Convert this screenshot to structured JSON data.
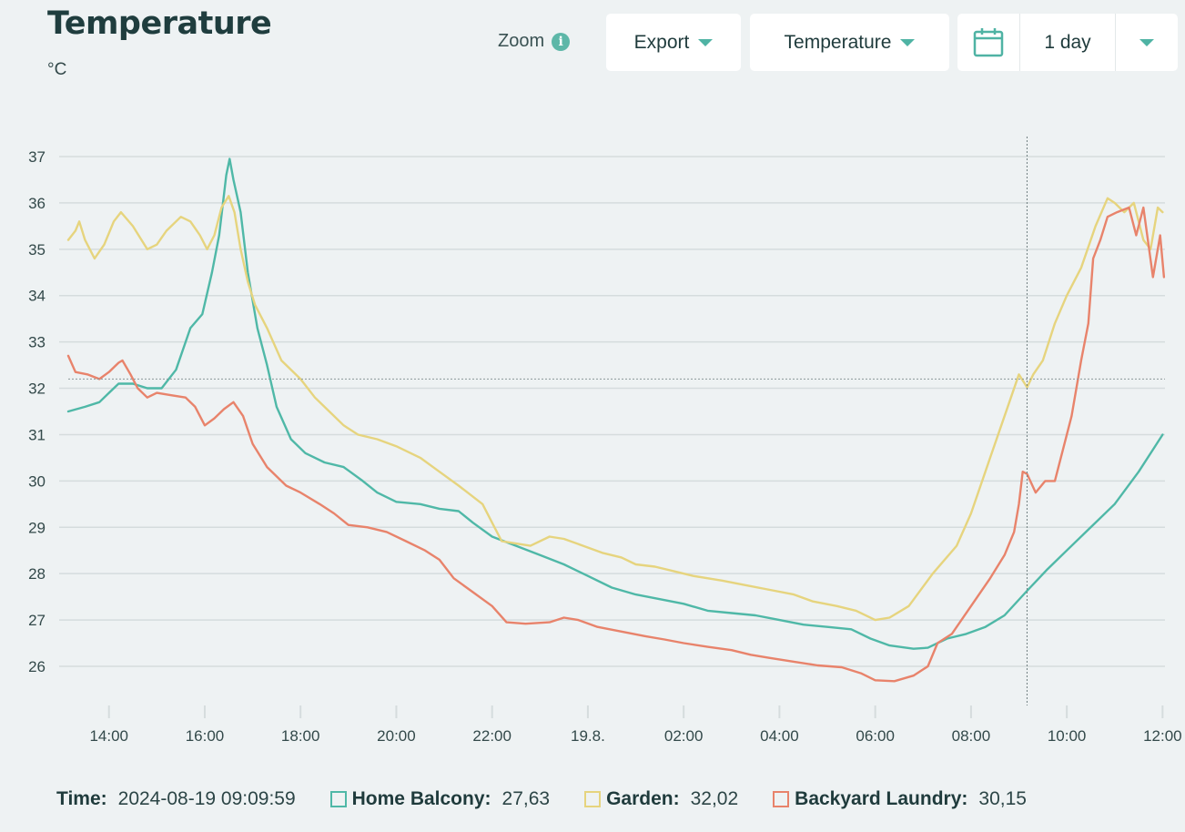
{
  "header": {
    "title": "Temperature",
    "unit": "°C",
    "zoom_label": "Zoom",
    "export_label": "Export",
    "metric_label": "Temperature",
    "range_label": "1 day"
  },
  "colors": {
    "accent": "#4fb3a4",
    "home_balcony": "#4fb8a7",
    "garden": "#e6d47e",
    "backyard_laundry": "#e8836b",
    "grid": "#d5dcdd"
  },
  "footer": {
    "time_label": "Time:",
    "time_value": "2024-08-19 09:09:59",
    "legend": [
      {
        "name": "Home Balcony:",
        "value": "27,63"
      },
      {
        "name": "Garden:",
        "value": "32,02"
      },
      {
        "name": "Backyard Laundry:",
        "value": "30,15"
      }
    ]
  },
  "chart_data": {
    "type": "line",
    "x_unit": "hours since 2024-08-18 00:00",
    "xlim": [
      13.15,
      36.05
    ],
    "ylim": [
      25.2,
      37.4
    ],
    "yticks": [
      26,
      27,
      28,
      29,
      30,
      31,
      32,
      33,
      34,
      35,
      36,
      37
    ],
    "xticks": [
      {
        "x": 14,
        "label": "14:00"
      },
      {
        "x": 16,
        "label": "16:00"
      },
      {
        "x": 18,
        "label": "18:00"
      },
      {
        "x": 20,
        "label": "20:00"
      },
      {
        "x": 22,
        "label": "22:00"
      },
      {
        "x": 24,
        "label": "19.8."
      },
      {
        "x": 26,
        "label": "02:00"
      },
      {
        "x": 28,
        "label": "04:00"
      },
      {
        "x": 30,
        "label": "06:00"
      },
      {
        "x": 32,
        "label": "08:00"
      },
      {
        "x": 34,
        "label": "10:00"
      },
      {
        "x": 36,
        "label": "12:00"
      }
    ],
    "crosshair": {
      "x": 33.17,
      "y": 32.2
    },
    "series": [
      {
        "name": "Home Balcony",
        "color": "#4fb8a7",
        "points": [
          [
            13.15,
            31.5
          ],
          [
            13.5,
            31.6
          ],
          [
            13.8,
            31.7
          ],
          [
            14.0,
            31.9
          ],
          [
            14.2,
            32.1
          ],
          [
            14.5,
            32.1
          ],
          [
            14.8,
            32.0
          ],
          [
            15.1,
            32.0
          ],
          [
            15.4,
            32.4
          ],
          [
            15.7,
            33.3
          ],
          [
            15.95,
            33.6
          ],
          [
            16.15,
            34.5
          ],
          [
            16.3,
            35.3
          ],
          [
            16.45,
            36.6
          ],
          [
            16.52,
            36.95
          ],
          [
            16.6,
            36.5
          ],
          [
            16.75,
            35.8
          ],
          [
            16.9,
            34.5
          ],
          [
            17.1,
            33.3
          ],
          [
            17.3,
            32.5
          ],
          [
            17.5,
            31.6
          ],
          [
            17.8,
            30.9
          ],
          [
            18.1,
            30.6
          ],
          [
            18.5,
            30.4
          ],
          [
            18.9,
            30.3
          ],
          [
            19.3,
            30.0
          ],
          [
            19.6,
            29.75
          ],
          [
            20.0,
            29.55
          ],
          [
            20.5,
            29.5
          ],
          [
            20.9,
            29.4
          ],
          [
            21.3,
            29.35
          ],
          [
            21.6,
            29.1
          ],
          [
            22.0,
            28.8
          ],
          [
            22.5,
            28.6
          ],
          [
            23.0,
            28.4
          ],
          [
            23.5,
            28.2
          ],
          [
            24.0,
            27.95
          ],
          [
            24.5,
            27.7
          ],
          [
            25.0,
            27.55
          ],
          [
            25.5,
            27.45
          ],
          [
            26.0,
            27.35
          ],
          [
            26.5,
            27.2
          ],
          [
            27.0,
            27.15
          ],
          [
            27.5,
            27.1
          ],
          [
            28.0,
            27.0
          ],
          [
            28.5,
            26.9
          ],
          [
            29.0,
            26.85
          ],
          [
            29.5,
            26.8
          ],
          [
            29.9,
            26.6
          ],
          [
            30.3,
            26.45
          ],
          [
            30.8,
            26.38
          ],
          [
            31.1,
            26.4
          ],
          [
            31.5,
            26.6
          ],
          [
            31.9,
            26.7
          ],
          [
            32.3,
            26.85
          ],
          [
            32.7,
            27.1
          ],
          [
            33.17,
            27.63
          ],
          [
            33.6,
            28.1
          ],
          [
            34.0,
            28.5
          ],
          [
            34.5,
            29.0
          ],
          [
            35.0,
            29.5
          ],
          [
            35.5,
            30.2
          ],
          [
            36.0,
            31.0
          ]
        ]
      },
      {
        "name": "Garden",
        "color": "#e6d47e",
        "points": [
          [
            13.15,
            35.2
          ],
          [
            13.3,
            35.4
          ],
          [
            13.38,
            35.6
          ],
          [
            13.5,
            35.2
          ],
          [
            13.7,
            34.8
          ],
          [
            13.9,
            35.1
          ],
          [
            14.1,
            35.6
          ],
          [
            14.25,
            35.8
          ],
          [
            14.5,
            35.5
          ],
          [
            14.8,
            35.0
          ],
          [
            15.0,
            35.1
          ],
          [
            15.2,
            35.4
          ],
          [
            15.5,
            35.7
          ],
          [
            15.7,
            35.6
          ],
          [
            15.9,
            35.3
          ],
          [
            16.05,
            35.0
          ],
          [
            16.2,
            35.3
          ],
          [
            16.35,
            35.9
          ],
          [
            16.5,
            36.15
          ],
          [
            16.62,
            35.8
          ],
          [
            16.75,
            35.0
          ],
          [
            16.9,
            34.3
          ],
          [
            17.05,
            33.8
          ],
          [
            17.3,
            33.3
          ],
          [
            17.6,
            32.6
          ],
          [
            18.0,
            32.2
          ],
          [
            18.3,
            31.8
          ],
          [
            18.6,
            31.5
          ],
          [
            18.9,
            31.2
          ],
          [
            19.2,
            31.0
          ],
          [
            19.6,
            30.9
          ],
          [
            20.0,
            30.75
          ],
          [
            20.5,
            30.5
          ],
          [
            20.9,
            30.2
          ],
          [
            21.3,
            29.9
          ],
          [
            21.8,
            29.5
          ],
          [
            22.0,
            29.1
          ],
          [
            22.2,
            28.7
          ],
          [
            22.5,
            28.65
          ],
          [
            22.8,
            28.6
          ],
          [
            23.2,
            28.8
          ],
          [
            23.5,
            28.75
          ],
          [
            23.9,
            28.6
          ],
          [
            24.3,
            28.45
          ],
          [
            24.7,
            28.35
          ],
          [
            25.0,
            28.2
          ],
          [
            25.4,
            28.15
          ],
          [
            25.8,
            28.05
          ],
          [
            26.2,
            27.95
          ],
          [
            26.8,
            27.85
          ],
          [
            27.3,
            27.75
          ],
          [
            27.8,
            27.65
          ],
          [
            28.3,
            27.55
          ],
          [
            28.7,
            27.4
          ],
          [
            29.2,
            27.3
          ],
          [
            29.6,
            27.2
          ],
          [
            30.0,
            27.0
          ],
          [
            30.3,
            27.05
          ],
          [
            30.7,
            27.3
          ],
          [
            31.2,
            28.0
          ],
          [
            31.7,
            28.6
          ],
          [
            32.0,
            29.3
          ],
          [
            32.4,
            30.5
          ],
          [
            32.8,
            31.7
          ],
          [
            33.0,
            32.3
          ],
          [
            33.17,
            32.02
          ],
          [
            33.3,
            32.3
          ],
          [
            33.5,
            32.6
          ],
          [
            33.75,
            33.4
          ],
          [
            34.0,
            34.0
          ],
          [
            34.3,
            34.6
          ],
          [
            34.6,
            35.5
          ],
          [
            34.85,
            36.1
          ],
          [
            35.0,
            36.0
          ],
          [
            35.2,
            35.8
          ],
          [
            35.4,
            36.0
          ],
          [
            35.6,
            35.2
          ],
          [
            35.75,
            35.0
          ],
          [
            35.9,
            35.9
          ],
          [
            36.0,
            35.8
          ]
        ]
      },
      {
        "name": "Backyard Laundry",
        "color": "#e8836b",
        "points": [
          [
            13.15,
            32.7
          ],
          [
            13.3,
            32.35
          ],
          [
            13.55,
            32.3
          ],
          [
            13.8,
            32.2
          ],
          [
            14.0,
            32.35
          ],
          [
            14.2,
            32.55
          ],
          [
            14.28,
            32.6
          ],
          [
            14.45,
            32.3
          ],
          [
            14.6,
            32.0
          ],
          [
            14.8,
            31.8
          ],
          [
            15.0,
            31.9
          ],
          [
            15.3,
            31.85
          ],
          [
            15.6,
            31.8
          ],
          [
            15.8,
            31.6
          ],
          [
            16.0,
            31.2
          ],
          [
            16.2,
            31.35
          ],
          [
            16.4,
            31.55
          ],
          [
            16.6,
            31.7
          ],
          [
            16.8,
            31.4
          ],
          [
            17.0,
            30.8
          ],
          [
            17.3,
            30.3
          ],
          [
            17.7,
            29.9
          ],
          [
            18.0,
            29.75
          ],
          [
            18.4,
            29.5
          ],
          [
            18.7,
            29.3
          ],
          [
            19.0,
            29.05
          ],
          [
            19.4,
            29.0
          ],
          [
            19.8,
            28.9
          ],
          [
            20.2,
            28.7
          ],
          [
            20.6,
            28.5
          ],
          [
            20.9,
            28.3
          ],
          [
            21.2,
            27.9
          ],
          [
            21.6,
            27.6
          ],
          [
            22.0,
            27.3
          ],
          [
            22.3,
            26.95
          ],
          [
            22.7,
            26.92
          ],
          [
            23.2,
            26.95
          ],
          [
            23.5,
            27.05
          ],
          [
            23.8,
            27.0
          ],
          [
            24.2,
            26.85
          ],
          [
            24.7,
            26.75
          ],
          [
            25.2,
            26.65
          ],
          [
            25.6,
            26.58
          ],
          [
            26.0,
            26.5
          ],
          [
            26.5,
            26.42
          ],
          [
            27.0,
            26.35
          ],
          [
            27.4,
            26.25
          ],
          [
            27.8,
            26.18
          ],
          [
            28.3,
            26.1
          ],
          [
            28.8,
            26.02
          ],
          [
            29.3,
            25.98
          ],
          [
            29.7,
            25.85
          ],
          [
            30.0,
            25.7
          ],
          [
            30.4,
            25.68
          ],
          [
            30.8,
            25.8
          ],
          [
            31.1,
            26.0
          ],
          [
            31.3,
            26.5
          ],
          [
            31.6,
            26.7
          ],
          [
            32.0,
            27.3
          ],
          [
            32.4,
            27.9
          ],
          [
            32.7,
            28.4
          ],
          [
            32.9,
            28.9
          ],
          [
            33.0,
            29.5
          ],
          [
            33.08,
            30.2
          ],
          [
            33.17,
            30.15
          ],
          [
            33.35,
            29.75
          ],
          [
            33.55,
            30.0
          ],
          [
            33.75,
            30.0
          ],
          [
            33.9,
            30.6
          ],
          [
            34.1,
            31.4
          ],
          [
            34.3,
            32.6
          ],
          [
            34.45,
            33.4
          ],
          [
            34.55,
            34.8
          ],
          [
            34.7,
            35.2
          ],
          [
            34.85,
            35.7
          ],
          [
            35.05,
            35.8
          ],
          [
            35.3,
            35.9
          ],
          [
            35.45,
            35.3
          ],
          [
            35.6,
            35.9
          ],
          [
            35.8,
            34.4
          ],
          [
            35.95,
            35.3
          ],
          [
            36.03,
            34.4
          ]
        ]
      }
    ]
  }
}
